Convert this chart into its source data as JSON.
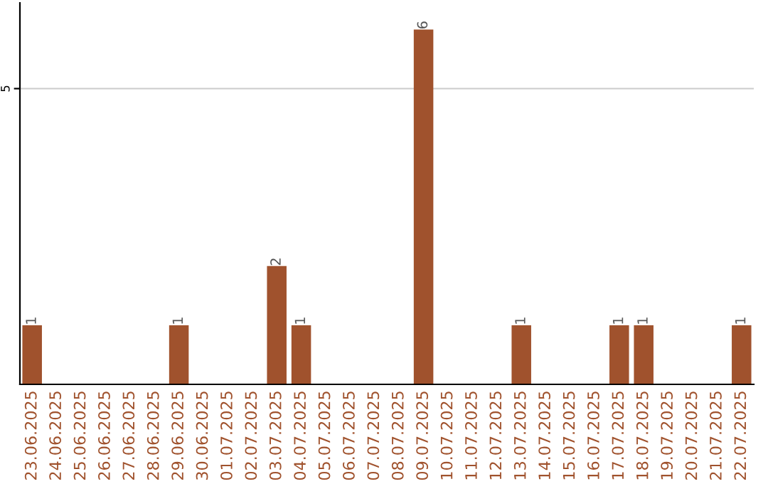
{
  "chart_data": {
    "type": "bar",
    "categories": [
      "23.06.2025",
      "24.06.2025",
      "25.06.2025",
      "26.06.2025",
      "27.06.2025",
      "28.06.2025",
      "29.06.2025",
      "30.06.2025",
      "01.07.2025",
      "02.07.2025",
      "03.07.2025",
      "04.07.2025",
      "05.07.2025",
      "06.07.2025",
      "07.07.2025",
      "08.07.2025",
      "09.07.2025",
      "10.07.2025",
      "11.07.2025",
      "12.07.2025",
      "13.07.2025",
      "14.07.2025",
      "15.07.2025",
      "16.07.2025",
      "17.07.2025",
      "18.07.2025",
      "19.07.2025",
      "20.07.2025",
      "21.07.2025",
      "22.07.2025"
    ],
    "values": [
      1,
      0,
      0,
      0,
      0,
      0,
      1,
      0,
      0,
      0,
      2,
      1,
      0,
      0,
      0,
      0,
      6,
      0,
      0,
      0,
      1,
      0,
      0,
      0,
      1,
      1,
      0,
      0,
      0,
      1
    ],
    "value_labels": [
      "1",
      null,
      null,
      null,
      null,
      null,
      "1",
      null,
      null,
      null,
      "2",
      "1",
      null,
      null,
      null,
      null,
      "6",
      null,
      null,
      null,
      "1",
      null,
      null,
      null,
      "1",
      "1",
      null,
      null,
      null,
      "1"
    ],
    "color": "#a0522d",
    "ylim": [
      0,
      6.45
    ],
    "yticks": [
      5
    ],
    "grid": "y"
  }
}
